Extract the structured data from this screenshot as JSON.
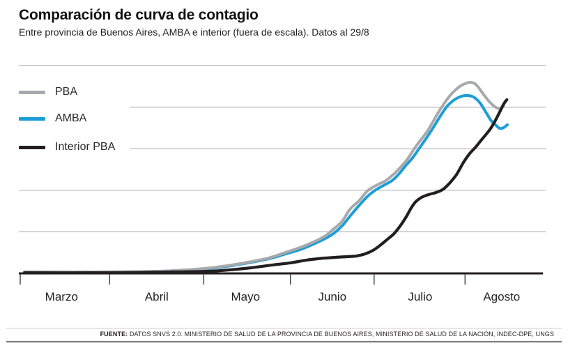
{
  "header": {
    "title": "Comparación de curva de contagio",
    "subtitle": "Entre provincia de Buenos Aires, AMBA e interior (fuera de escala). Datos al 29/8"
  },
  "legend": {
    "items": [
      {
        "label": "PBA",
        "color": "#a7a9ac"
      },
      {
        "label": "AMBA",
        "color": "#1d9dd8"
      },
      {
        "label": "Interior PBA",
        "color": "#231f20"
      }
    ]
  },
  "chart_data": {
    "type": "line",
    "title": "Comparación de curva de contagio",
    "subtitle": "Entre provincia de Buenos Aires, AMBA e interior (fuera de escala). Datos al 29/8",
    "x_axis": {
      "months": [
        "Marzo",
        "Abril",
        "Mayo",
        "Junio",
        "Julio",
        "Agosto"
      ],
      "tick_positions_pct": [
        0,
        17.1,
        35.1,
        51.7,
        67.7,
        85.1
      ],
      "label_positions_pct": [
        7.9,
        26.1,
        43.1,
        59.7,
        76.5,
        92.1
      ],
      "range": "marzo a 29 de agosto"
    },
    "y_axis": {
      "note": "fuera de escala (sin valores numéricos en el gráfico)",
      "range": [
        0,
        100
      ],
      "gridline_levels": [
        20,
        40,
        60,
        80,
        100
      ],
      "grid": true
    },
    "legend_position": "left",
    "series": [
      {
        "name": "PBA",
        "color": "#a7a9ac",
        "points": [
          [
            0.8,
            0.7
          ],
          [
            9,
            0.7
          ],
          [
            16.1,
            0.7
          ],
          [
            26.8,
            1
          ],
          [
            32.1,
            1.7
          ],
          [
            37.5,
            3
          ],
          [
            42.8,
            5
          ],
          [
            47.5,
            7.4
          ],
          [
            50.8,
            10.1
          ],
          [
            53.5,
            12.4
          ],
          [
            56.1,
            15.1
          ],
          [
            58.4,
            18.1
          ],
          [
            59.2,
            19.8
          ],
          [
            61.5,
            24.8
          ],
          [
            63.1,
            30.9
          ],
          [
            64.8,
            34.9
          ],
          [
            66.4,
            39.6
          ],
          [
            68.1,
            42.3
          ],
          [
            69.7,
            44.3
          ],
          [
            70.8,
            46.3
          ],
          [
            72.1,
            49.3
          ],
          [
            73.9,
            54.4
          ],
          [
            75.7,
            61.1
          ],
          [
            77.9,
            68.5
          ],
          [
            80.1,
            77.9
          ],
          [
            82.1,
            85.2
          ],
          [
            83.9,
            89.6
          ],
          [
            85.2,
            91.4
          ],
          [
            86.3,
            91.9
          ],
          [
            87.3,
            90.6
          ],
          [
            88.7,
            85.9
          ],
          [
            89.9,
            82.2
          ],
          [
            90.8,
            80.2
          ],
          [
            91.6,
            79.2
          ],
          [
            92.1,
            79.5
          ],
          [
            92.5,
            80.9
          ]
        ]
      },
      {
        "name": "AMBA",
        "color": "#1d9dd8",
        "points": [
          [
            0.8,
            0.7
          ],
          [
            16.1,
            0.7
          ],
          [
            26.8,
            1
          ],
          [
            32.1,
            1.7
          ],
          [
            37.5,
            2.7
          ],
          [
            42.8,
            4.7
          ],
          [
            47.5,
            7
          ],
          [
            50.8,
            9.4
          ],
          [
            53.5,
            11.4
          ],
          [
            56.1,
            14.1
          ],
          [
            58.4,
            16.8
          ],
          [
            60.1,
            19.5
          ],
          [
            61.7,
            23.2
          ],
          [
            63.3,
            28.2
          ],
          [
            64.9,
            32.9
          ],
          [
            66.5,
            37.2
          ],
          [
            68.1,
            40.3
          ],
          [
            69.7,
            42.6
          ],
          [
            71.1,
            44.6
          ],
          [
            72.4,
            47.7
          ],
          [
            73.7,
            51.7
          ],
          [
            75.1,
            55.7
          ],
          [
            76.4,
            60.4
          ],
          [
            77.7,
            65.1
          ],
          [
            79.1,
            70.5
          ],
          [
            80.4,
            75.8
          ],
          [
            81.7,
            80.5
          ],
          [
            83.1,
            83.6
          ],
          [
            84.3,
            85.1
          ],
          [
            85.3,
            85.6
          ],
          [
            86.1,
            85.4
          ],
          [
            86.9,
            84.6
          ],
          [
            88,
            81.9
          ],
          [
            89.1,
            77.5
          ],
          [
            90.1,
            73.5
          ],
          [
            91.1,
            71.1
          ],
          [
            91.7,
            69.8
          ],
          [
            92.4,
            70
          ],
          [
            93.2,
            71.5
          ]
        ]
      },
      {
        "name": "Interior PBA",
        "color": "#231f20",
        "points": [
          [
            0.8,
            0.3
          ],
          [
            16.1,
            0.3
          ],
          [
            29.5,
            0.7
          ],
          [
            36.1,
            1
          ],
          [
            40.1,
            1.7
          ],
          [
            44.1,
            2.7
          ],
          [
            48.1,
            4
          ],
          [
            51.5,
            5
          ],
          [
            54.8,
            6.4
          ],
          [
            57.5,
            7.2
          ],
          [
            60.1,
            7.7
          ],
          [
            62.8,
            8.1
          ],
          [
            64.4,
            8.4
          ],
          [
            66,
            9.4
          ],
          [
            67.5,
            11.1
          ],
          [
            68.8,
            13.4
          ],
          [
            70.1,
            16.1
          ],
          [
            71.5,
            19.1
          ],
          [
            72.8,
            23.2
          ],
          [
            73.9,
            27.5
          ],
          [
            74.8,
            31.5
          ],
          [
            75.7,
            34.6
          ],
          [
            76.8,
            36.6
          ],
          [
            78.1,
            37.9
          ],
          [
            79.5,
            38.9
          ],
          [
            80.8,
            40.3
          ],
          [
            82.1,
            43.3
          ],
          [
            83.5,
            47.7
          ],
          [
            84.8,
            53.4
          ],
          [
            85.9,
            57.4
          ],
          [
            87.1,
            60.7
          ],
          [
            88.1,
            63.8
          ],
          [
            89.2,
            67.1
          ],
          [
            90.1,
            70.1
          ],
          [
            91.1,
            74.5
          ],
          [
            91.9,
            78.5
          ],
          [
            92.5,
            81.5
          ],
          [
            93.1,
            83.6
          ]
        ]
      }
    ]
  },
  "footer": {
    "source_label": "FUENTE:",
    "source_text": "DATOS SNVS 2.0. MINISTERIO DE SALUD DE LA PROVINCIA DE BUENOS AIRES, MINISTERIO DE SALUD DE LA NACIÓN, INDEC-DPE, UNGS"
  }
}
